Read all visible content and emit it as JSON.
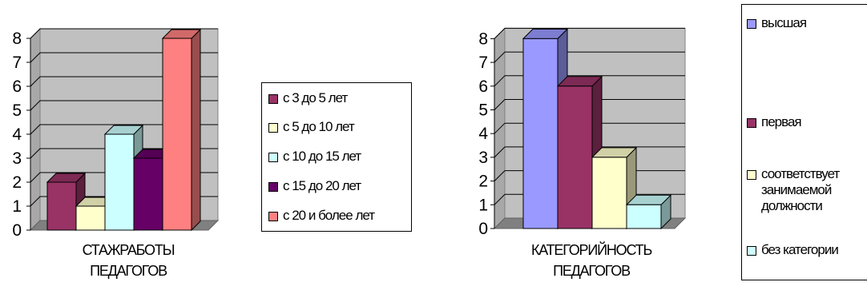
{
  "chart_data": [
    {
      "type": "bar",
      "categories": [
        "СТАЖ РАБОТЫ ПЕДАГОГОВ"
      ],
      "x_label_lines": [
        "СТАЖРАБОТЫ",
        "ПЕДАГОГОВ"
      ],
      "ylim": [
        0,
        8
      ],
      "yticks": [
        "0",
        "1",
        "2",
        "3",
        "4",
        "5",
        "6",
        "7",
        "8"
      ],
      "grid": true,
      "legend_position": "right",
      "series": [
        {
          "name": "с 3 до 5 лет",
          "values": [
            2
          ],
          "color": "#993366"
        },
        {
          "name": "с 5 до 10 лет",
          "values": [
            1
          ],
          "color": "#FFFFCC"
        },
        {
          "name": "с 10 до 15 лет",
          "values": [
            4
          ],
          "color": "#CCFFFF"
        },
        {
          "name": "с 15 до 20 лет",
          "values": [
            3
          ],
          "color": "#660066"
        },
        {
          "name": "с 20 и более лет",
          "values": [
            8
          ],
          "color": "#FF8080"
        }
      ]
    },
    {
      "type": "bar",
      "categories": [
        "КАТЕГОРИЙНОСТЬ ПЕДАГОГОВ"
      ],
      "x_label_lines": [
        "КАТЕГОРИЙНОСТЬ",
        "ПЕДАГОГОВ"
      ],
      "ylim": [
        0,
        8
      ],
      "yticks": [
        "0",
        "1",
        "2",
        "3",
        "4",
        "5",
        "6",
        "7",
        "8"
      ],
      "grid": true,
      "legend_position": "right",
      "series": [
        {
          "name": "высшая",
          "label_lines": [
            "высшая"
          ],
          "values": [
            8
          ],
          "color": "#9999FF"
        },
        {
          "name": "первая",
          "label_lines": [
            "первая"
          ],
          "values": [
            6
          ],
          "color": "#993366"
        },
        {
          "name": "соответствует занимаемой должности",
          "label_lines": [
            "соответствует",
            "занимаемой",
            "должности"
          ],
          "values": [
            3
          ],
          "color": "#FFFFCC"
        },
        {
          "name": "без категории",
          "label_lines": [
            "без категории"
          ],
          "values": [
            1
          ],
          "color": "#CCFFFF"
        }
      ]
    }
  ]
}
